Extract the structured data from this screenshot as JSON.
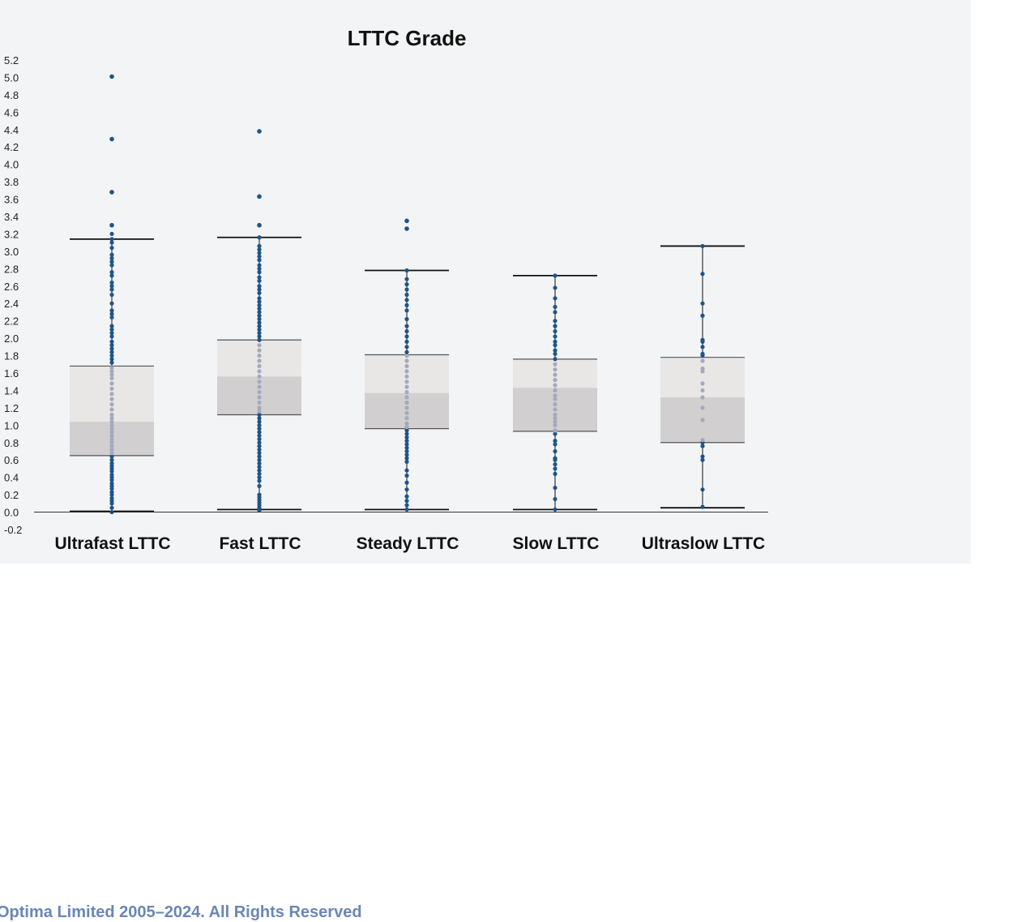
{
  "chart_data": {
    "type": "box",
    "title": "LTTC Grade",
    "xlabel": "",
    "ylabel": "",
    "ylim": [
      -0.2,
      5.2
    ],
    "yticks": [
      "5.2",
      "5.0",
      "4.8",
      "4.6",
      "4.4",
      "4.2",
      "4.0",
      "3.8",
      "3.6",
      "3.4",
      "3.2",
      "3.0",
      "2.8",
      "2.6",
      "2.4",
      "2.2",
      "2.0",
      "1.8",
      "1.6",
      "1.4",
      "1.2",
      "1.0",
      "0.8",
      "0.6",
      "0.4",
      "0.2",
      "0.0",
      "-0.2"
    ],
    "categories": [
      "Ultrafast LTTC",
      "Fast LTTC",
      "Steady LTTC",
      "Slow LTTC",
      "Ultraslow LTTC"
    ],
    "boxes": [
      {
        "name": "Ultrafast LTTC",
        "whisker_low": 0.01,
        "q1": 0.65,
        "median": 1.04,
        "q3": 1.68,
        "whisker_high": 3.14,
        "outliers": [
          3.3,
          3.68,
          4.29,
          5.01
        ],
        "points": [
          0.0,
          0.05,
          0.1,
          0.13,
          0.16,
          0.2,
          0.23,
          0.27,
          0.3,
          0.33,
          0.37,
          0.4,
          0.43,
          0.47,
          0.5,
          0.53,
          0.56,
          0.6,
          0.64,
          0.68,
          0.72,
          0.76,
          0.8,
          0.84,
          0.88,
          0.92,
          0.96,
          1.0,
          1.04,
          1.08,
          1.12,
          1.18,
          1.24,
          1.3,
          1.36,
          1.42,
          1.48,
          1.54,
          1.58,
          1.62,
          1.66,
          1.72,
          1.76,
          1.8,
          1.84,
          1.88,
          1.92,
          1.96,
          2.02,
          2.06,
          2.1,
          2.14,
          2.24,
          2.28,
          2.32,
          2.4,
          2.5,
          2.56,
          2.6,
          2.64,
          2.72,
          2.76,
          2.84,
          2.88,
          2.92,
          2.96,
          3.04,
          3.1,
          3.14,
          3.2
        ]
      },
      {
        "name": "Fast LTTC",
        "whisker_low": 0.03,
        "q1": 1.12,
        "median": 1.56,
        "q3": 1.98,
        "whisker_high": 3.16,
        "outliers": [
          3.3,
          3.63,
          4.38
        ],
        "points": [
          0.02,
          0.05,
          0.08,
          0.11,
          0.14,
          0.17,
          0.2,
          0.3,
          0.36,
          0.4,
          0.44,
          0.48,
          0.52,
          0.56,
          0.6,
          0.64,
          0.68,
          0.72,
          0.76,
          0.8,
          0.84,
          0.88,
          0.92,
          0.96,
          1.0,
          1.04,
          1.08,
          1.12,
          1.16,
          1.2,
          1.26,
          1.32,
          1.38,
          1.44,
          1.5,
          1.56,
          1.62,
          1.68,
          1.74,
          1.8,
          1.86,
          1.92,
          1.98,
          2.02,
          2.06,
          2.1,
          2.14,
          2.18,
          2.22,
          2.26,
          2.3,
          2.34,
          2.38,
          2.42,
          2.46,
          2.52,
          2.56,
          2.6,
          2.66,
          2.7,
          2.76,
          2.8,
          2.84,
          2.9,
          2.94,
          2.98,
          3.02,
          3.06,
          3.16
        ]
      },
      {
        "name": "Steady LTTC",
        "whisker_low": 0.03,
        "q1": 0.96,
        "median": 1.37,
        "q3": 1.81,
        "whisker_high": 2.78,
        "outliers": [
          3.26,
          3.35
        ],
        "points": [
          0.03,
          0.08,
          0.13,
          0.18,
          0.26,
          0.34,
          0.42,
          0.48,
          0.58,
          0.62,
          0.66,
          0.7,
          0.74,
          0.78,
          0.82,
          0.86,
          0.9,
          0.94,
          0.98,
          1.02,
          1.08,
          1.14,
          1.2,
          1.26,
          1.32,
          1.38,
          1.44,
          1.5,
          1.56,
          1.62,
          1.68,
          1.74,
          1.8,
          1.84,
          1.9,
          1.96,
          2.02,
          2.08,
          2.14,
          2.22,
          2.32,
          2.38,
          2.44,
          2.5,
          2.56,
          2.62,
          2.68,
          2.78
        ]
      },
      {
        "name": "Slow LTTC",
        "whisker_low": 0.03,
        "q1": 0.93,
        "median": 1.43,
        "q3": 1.76,
        "whisker_high": 2.72,
        "outliers": [],
        "points": [
          0.03,
          0.15,
          0.28,
          0.44,
          0.5,
          0.55,
          0.6,
          0.62,
          0.7,
          0.78,
          0.82,
          0.9,
          0.94,
          1.0,
          1.04,
          1.08,
          1.12,
          1.18,
          1.24,
          1.3,
          1.34,
          1.4,
          1.46,
          1.52,
          1.58,
          1.64,
          1.7,
          1.76,
          1.82,
          1.86,
          1.92,
          1.96,
          2.02,
          2.08,
          2.14,
          2.2,
          2.3,
          2.36,
          2.46,
          2.58,
          2.72
        ]
      },
      {
        "name": "Ultraslow LTTC",
        "whisker_low": 0.05,
        "q1": 0.8,
        "median": 1.32,
        "q3": 1.78,
        "whisker_high": 3.06,
        "outliers": [],
        "points": [
          0.06,
          0.26,
          0.6,
          0.64,
          0.76,
          0.8,
          0.83,
          1.06,
          1.2,
          1.32,
          1.4,
          1.48,
          1.62,
          1.65,
          1.74,
          1.8,
          1.82,
          1.9,
          1.96,
          1.98,
          2.26,
          2.4,
          2.74,
          3.06
        ]
      }
    ],
    "colors": {
      "panel_bg": "#f3f4f6",
      "box_upper": "#e9e7e6",
      "box_lower": "#d1cfd0",
      "point": "#1f5489",
      "point_inside": "#a4a9bd",
      "line": "#111111"
    },
    "grid": false,
    "legend": "none"
  },
  "footer": {
    "text": "Optima Limited 2005–2024. All Rights Reserved"
  }
}
